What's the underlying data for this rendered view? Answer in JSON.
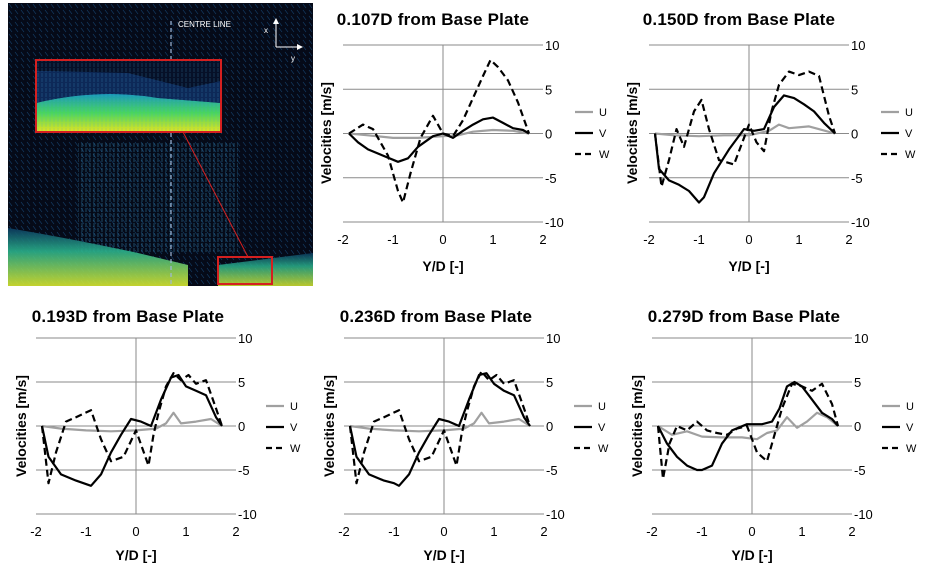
{
  "piv_image": {
    "centre_line_label": "CENTRE LINE",
    "axis_x_label": "x",
    "axis_y_label": "y",
    "colors": {
      "background": "#050a18",
      "highlight_box": "#d42020"
    }
  },
  "chart_data": [
    {
      "type": "line",
      "title": "0.107D from Base Plate",
      "xlabel": "Y/D [-]",
      "ylabel": "Velocities [m/s]",
      "xlim": [
        -2,
        2
      ],
      "ylim": [
        -10,
        10
      ],
      "xticks": [
        "-2",
        "-1",
        "0",
        "1",
        "2"
      ],
      "yticks": [
        "10",
        "5",
        "0",
        "-5",
        "-10"
      ],
      "grid": true,
      "legend_position": "right",
      "series": [
        {
          "name": "U",
          "color": "#a0a0a0",
          "dash": "solid",
          "x": [
            -1.88,
            -1.5,
            -1.0,
            -0.5,
            0.0,
            0.3,
            0.6,
            1.0,
            1.4,
            1.72
          ],
          "y": [
            0.0,
            -0.2,
            -0.5,
            -0.5,
            -0.3,
            -0.2,
            0.2,
            0.4,
            0.3,
            0.0
          ]
        },
        {
          "name": "V",
          "color": "#000000",
          "dash": "solid",
          "x": [
            -1.88,
            -1.7,
            -1.5,
            -1.2,
            -0.9,
            -0.7,
            -0.5,
            -0.2,
            0.0,
            0.2,
            0.4,
            0.6,
            0.8,
            1.0,
            1.2,
            1.4,
            1.6,
            1.72
          ],
          "y": [
            0.0,
            -1.0,
            -1.8,
            -2.5,
            -3.2,
            -2.8,
            -1.5,
            -0.3,
            0.0,
            -0.5,
            0.3,
            1.0,
            1.6,
            1.8,
            1.2,
            0.6,
            0.4,
            0.0
          ]
        },
        {
          "name": "W",
          "color": "#000000",
          "dash": "dashed",
          "x": [
            -1.88,
            -1.6,
            -1.4,
            -1.1,
            -0.9,
            -0.8,
            -0.65,
            -0.45,
            -0.2,
            0.0,
            0.2,
            0.4,
            0.6,
            0.8,
            0.95,
            1.1,
            1.3,
            1.5,
            1.72
          ],
          "y": [
            0.0,
            1.0,
            0.5,
            -2.5,
            -6.5,
            -7.8,
            -4.5,
            -0.5,
            2.0,
            0.0,
            -0.3,
            1.5,
            4.0,
            6.5,
            8.3,
            7.5,
            6.0,
            3.5,
            0.0
          ]
        }
      ]
    },
    {
      "type": "line",
      "title": "0.150D from Base Plate",
      "xlabel": "Y/D [-]",
      "ylabel": "Velocities [m/s]",
      "xlim": [
        -2,
        2
      ],
      "ylim": [
        -10,
        10
      ],
      "xticks": [
        "-2",
        "-1",
        "0",
        "1",
        "2"
      ],
      "yticks": [
        "10",
        "5",
        "0",
        "-5",
        "-10"
      ],
      "grid": true,
      "legend_position": "right",
      "series": [
        {
          "name": "U",
          "color": "#a0a0a0",
          "dash": "solid",
          "x": [
            -1.88,
            -1.5,
            -1.0,
            -0.5,
            0.0,
            0.4,
            0.6,
            0.8,
            1.2,
            1.72
          ],
          "y": [
            0.0,
            -0.2,
            -0.3,
            -0.2,
            -0.2,
            0.3,
            1.0,
            0.6,
            0.8,
            0.0
          ]
        },
        {
          "name": "V",
          "color": "#000000",
          "dash": "solid",
          "x": [
            -1.88,
            -1.8,
            -1.6,
            -1.4,
            -1.2,
            -1.0,
            -0.9,
            -0.7,
            -0.4,
            -0.1,
            0.1,
            0.3,
            0.5,
            0.7,
            0.9,
            1.1,
            1.3,
            1.5,
            1.72
          ],
          "y": [
            0.0,
            -4.0,
            -5.3,
            -5.8,
            -6.5,
            -7.8,
            -7.2,
            -4.5,
            -1.8,
            0.5,
            0.3,
            0.5,
            3.0,
            4.3,
            4.0,
            3.3,
            2.5,
            1.2,
            0.0
          ]
        },
        {
          "name": "W",
          "color": "#000000",
          "dash": "dashed",
          "x": [
            -1.88,
            -1.75,
            -1.6,
            -1.45,
            -1.3,
            -1.1,
            -0.95,
            -0.8,
            -0.6,
            -0.3,
            0.0,
            0.15,
            0.3,
            0.45,
            0.6,
            0.8,
            1.0,
            1.2,
            1.4,
            1.6,
            1.72
          ],
          "y": [
            0.0,
            -6.0,
            -3.0,
            0.5,
            -1.5,
            2.5,
            3.8,
            0.5,
            -3.0,
            -3.5,
            1.0,
            -1.0,
            -2.0,
            2.5,
            5.5,
            7.0,
            6.6,
            7.0,
            6.5,
            2.0,
            0.0
          ]
        }
      ]
    },
    {
      "type": "line",
      "title": "0.193D from Base Plate",
      "xlabel": "Y/D [-]",
      "ylabel": "Velocities [m/s]",
      "xlim": [
        -2,
        2
      ],
      "ylim": [
        -10,
        10
      ],
      "xticks": [
        "-2",
        "-1",
        "0",
        "1",
        "2"
      ],
      "yticks": [
        "10",
        "5",
        "0",
        "-5",
        "-10"
      ],
      "grid": true,
      "legend_position": "right",
      "series": [
        {
          "name": "U",
          "color": "#a0a0a0",
          "dash": "solid",
          "x": [
            -1.88,
            -1.5,
            -1.0,
            -0.5,
            0.0,
            0.4,
            0.6,
            0.75,
            0.9,
            1.2,
            1.5,
            1.72
          ],
          "y": [
            0.0,
            -0.3,
            -0.5,
            -0.6,
            -0.5,
            -0.3,
            0.3,
            1.5,
            0.3,
            0.5,
            0.8,
            0.0
          ]
        },
        {
          "name": "V",
          "color": "#000000",
          "dash": "solid",
          "x": [
            -1.88,
            -1.75,
            -1.5,
            -1.2,
            -1.0,
            -0.9,
            -0.7,
            -0.5,
            -0.3,
            -0.1,
            0.1,
            0.3,
            0.5,
            0.7,
            0.85,
            1.0,
            1.2,
            1.4,
            1.6,
            1.72
          ],
          "y": [
            0.0,
            -3.5,
            -5.5,
            -6.2,
            -6.6,
            -6.8,
            -5.5,
            -3.0,
            -1.0,
            0.8,
            0.5,
            0.0,
            3.0,
            5.5,
            5.8,
            4.5,
            4.0,
            3.5,
            1.0,
            0.0
          ]
        },
        {
          "name": "W",
          "color": "#000000",
          "dash": "dashed",
          "x": [
            -1.88,
            -1.75,
            -1.6,
            -1.4,
            -1.2,
            -0.9,
            -0.7,
            -0.5,
            -0.25,
            0.0,
            0.25,
            0.35,
            0.45,
            0.6,
            0.75,
            0.9,
            1.05,
            1.2,
            1.4,
            1.6,
            1.72
          ],
          "y": [
            0.0,
            -6.5,
            -3.0,
            0.5,
            1.0,
            1.8,
            -1.5,
            -4.0,
            -3.5,
            -0.5,
            -4.5,
            -1.0,
            1.5,
            4.5,
            6.0,
            5.2,
            5.8,
            4.8,
            5.2,
            2.0,
            0.0
          ]
        }
      ]
    },
    {
      "type": "line",
      "title": "0.236D from Base Plate",
      "xlabel": "Y/D [-]",
      "ylabel": "Velocities [m/s]",
      "xlim": [
        -2,
        2
      ],
      "ylim": [
        -10,
        10
      ],
      "xticks": [
        "-2",
        "-1",
        "0",
        "1",
        "2"
      ],
      "yticks": [
        "10",
        "5",
        "0",
        "-5",
        "-10"
      ],
      "grid": true,
      "legend_position": "right",
      "series": [
        {
          "name": "U",
          "color": "#a0a0a0",
          "dash": "solid",
          "x": [
            -1.88,
            -1.5,
            -1.0,
            -0.5,
            0.0,
            0.4,
            0.6,
            0.75,
            0.9,
            1.2,
            1.5,
            1.72
          ],
          "y": [
            0.0,
            -0.3,
            -0.5,
            -0.6,
            -0.5,
            -0.3,
            0.3,
            1.5,
            0.3,
            0.5,
            0.8,
            0.0
          ]
        },
        {
          "name": "V",
          "color": "#000000",
          "dash": "solid",
          "x": [
            -1.88,
            -1.75,
            -1.5,
            -1.2,
            -1.0,
            -0.9,
            -0.7,
            -0.5,
            -0.3,
            -0.1,
            0.1,
            0.3,
            0.5,
            0.7,
            0.85,
            1.0,
            1.2,
            1.4,
            1.6,
            1.72
          ],
          "y": [
            0.0,
            -3.5,
            -5.5,
            -6.2,
            -6.5,
            -6.8,
            -5.5,
            -3.0,
            -1.0,
            0.8,
            0.5,
            0.0,
            3.0,
            5.8,
            6.0,
            4.8,
            4.0,
            3.5,
            1.0,
            0.0
          ]
        },
        {
          "name": "W",
          "color": "#000000",
          "dash": "dashed",
          "x": [
            -1.88,
            -1.75,
            -1.6,
            -1.4,
            -1.2,
            -0.9,
            -0.7,
            -0.5,
            -0.25,
            0.0,
            0.25,
            0.35,
            0.45,
            0.6,
            0.75,
            0.9,
            1.05,
            1.2,
            1.4,
            1.6,
            1.72
          ],
          "y": [
            0.0,
            -6.5,
            -3.0,
            0.5,
            1.0,
            1.8,
            -1.5,
            -4.0,
            -3.5,
            -0.5,
            -4.5,
            -1.0,
            1.5,
            4.5,
            6.2,
            5.2,
            5.8,
            4.8,
            5.2,
            2.0,
            0.0
          ]
        }
      ]
    },
    {
      "type": "line",
      "title": "0.279D from Base Plate",
      "xlabel": "Y/D [-]",
      "ylabel": "Velocities [m/s]",
      "xlim": [
        -2,
        2
      ],
      "ylim": [
        -10,
        10
      ],
      "xticks": [
        "-2",
        "-1",
        "0",
        "1",
        "2"
      ],
      "yticks": [
        "10",
        "5",
        "0",
        "-5",
        "-10"
      ],
      "grid": true,
      "legend_position": "right",
      "series": [
        {
          "name": "U",
          "color": "#a0a0a0",
          "dash": "solid",
          "x": [
            -1.88,
            -1.6,
            -1.3,
            -1.0,
            -0.6,
            -0.2,
            0.1,
            0.3,
            0.5,
            0.7,
            0.9,
            1.1,
            1.3,
            1.5,
            1.72
          ],
          "y": [
            0.0,
            -1.0,
            -0.6,
            -1.2,
            -1.3,
            -1.3,
            -1.5,
            -0.8,
            -0.5,
            1.0,
            -0.2,
            0.5,
            1.5,
            1.0,
            0.0
          ]
        },
        {
          "name": "V",
          "color": "#000000",
          "dash": "solid",
          "x": [
            -1.88,
            -1.7,
            -1.5,
            -1.3,
            -1.1,
            -1.0,
            -0.8,
            -0.6,
            -0.4,
            -0.1,
            0.2,
            0.4,
            0.55,
            0.7,
            0.85,
            1.0,
            1.2,
            1.4,
            1.6,
            1.72
          ],
          "y": [
            0.0,
            -2.0,
            -3.5,
            -4.5,
            -5.0,
            -5.0,
            -4.5,
            -2.0,
            -0.5,
            0.2,
            0.2,
            0.5,
            2.0,
            4.5,
            5.0,
            4.5,
            3.0,
            1.5,
            0.8,
            0.0
          ]
        },
        {
          "name": "W",
          "color": "#000000",
          "dash": "dashed",
          "x": [
            -1.88,
            -1.78,
            -1.65,
            -1.5,
            -1.3,
            -1.1,
            -0.9,
            -0.7,
            -0.5,
            -0.3,
            -0.1,
            0.1,
            0.3,
            0.45,
            0.6,
            0.8,
            1.0,
            1.2,
            1.4,
            1.6,
            1.72
          ],
          "y": [
            0.0,
            -6.0,
            -2.0,
            0.0,
            -0.5,
            0.5,
            -0.5,
            -0.8,
            -1.0,
            -0.3,
            0.0,
            -3.0,
            -4.0,
            -1.0,
            2.0,
            4.8,
            4.5,
            4.0,
            4.8,
            2.5,
            0.0
          ]
        }
      ]
    }
  ]
}
